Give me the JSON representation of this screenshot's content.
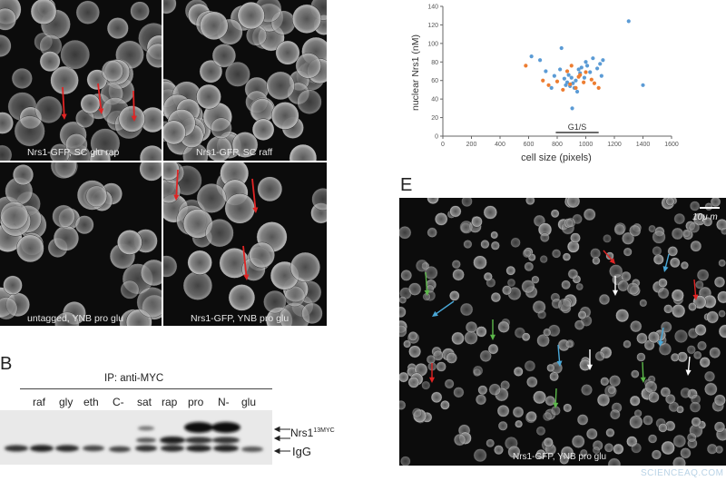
{
  "panelA": {
    "captions": [
      "Nrs1-GFP, SC glu rap",
      "Nrs1-GFP, SC raff",
      "untagged, YNB pro glu",
      "Nrs1-GFP, YNB pro glu"
    ]
  },
  "panelB": {
    "letter": "B",
    "ip_label": "IP: anti-MYC",
    "lanes": [
      "raf",
      "gly",
      "eth",
      "C-",
      "sat",
      "rap",
      "pro",
      "N-",
      "glu"
    ],
    "band_labels": {
      "nrs1": "Nrs1",
      "nrs1_sup": "13MYC",
      "igg": "IgG"
    }
  },
  "panelD": {
    "annotation": "G1/S"
  },
  "chart_data": {
    "type": "scatter",
    "title": "",
    "xlabel": "cell size (pixels)",
    "ylabel": "nuclear Nrs1 (nM)",
    "xlim": [
      0,
      1600
    ],
    "ylim": [
      0,
      140
    ],
    "xticks": [
      0,
      200,
      400,
      600,
      800,
      1000,
      1200,
      1400,
      1600
    ],
    "yticks": [
      0,
      20,
      40,
      60,
      80,
      100,
      120,
      140
    ],
    "g1s_range": [
      790,
      1090
    ],
    "colors": {
      "series1": "#5b9bd5",
      "series2": "#ed7d31"
    },
    "series": [
      {
        "color": "#5b9bd5",
        "points": [
          [
            620,
            86
          ],
          [
            680,
            82
          ],
          [
            720,
            70
          ],
          [
            780,
            65
          ],
          [
            830,
            95
          ],
          [
            850,
            62
          ],
          [
            860,
            55
          ],
          [
            870,
            58
          ],
          [
            880,
            66
          ],
          [
            890,
            54
          ],
          [
            900,
            63
          ],
          [
            910,
            57
          ],
          [
            920,
            52
          ],
          [
            930,
            60
          ],
          [
            940,
            48
          ],
          [
            950,
            72
          ],
          [
            960,
            68
          ],
          [
            970,
            74
          ],
          [
            990,
            63
          ],
          [
            1000,
            80
          ],
          [
            1010,
            76
          ],
          [
            1030,
            69
          ],
          [
            1050,
            84
          ],
          [
            1080,
            73
          ],
          [
            1100,
            78
          ],
          [
            1110,
            65
          ],
          [
            1120,
            82
          ],
          [
            905,
            30
          ],
          [
            1300,
            124
          ],
          [
            1400,
            55
          ],
          [
            820,
            72
          ],
          [
            760,
            52
          ]
        ]
      },
      {
        "color": "#ed7d31",
        "points": [
          [
            580,
            76
          ],
          [
            700,
            60
          ],
          [
            740,
            55
          ],
          [
            800,
            59
          ],
          [
            840,
            50
          ],
          [
            870,
            70
          ],
          [
            900,
            76
          ],
          [
            930,
            52
          ],
          [
            960,
            66
          ],
          [
            985,
            58
          ],
          [
            1000,
            69
          ],
          [
            1040,
            61
          ],
          [
            1060,
            57
          ],
          [
            1090,
            52
          ],
          [
            950,
            64
          ],
          [
            890,
            56
          ]
        ]
      }
    ]
  },
  "panelE": {
    "letter": "E",
    "scale_label": "10μ m",
    "caption": "Nrs1-GFP, YNB pro glu"
  },
  "watermark": "SCIENCEAQ.COM"
}
